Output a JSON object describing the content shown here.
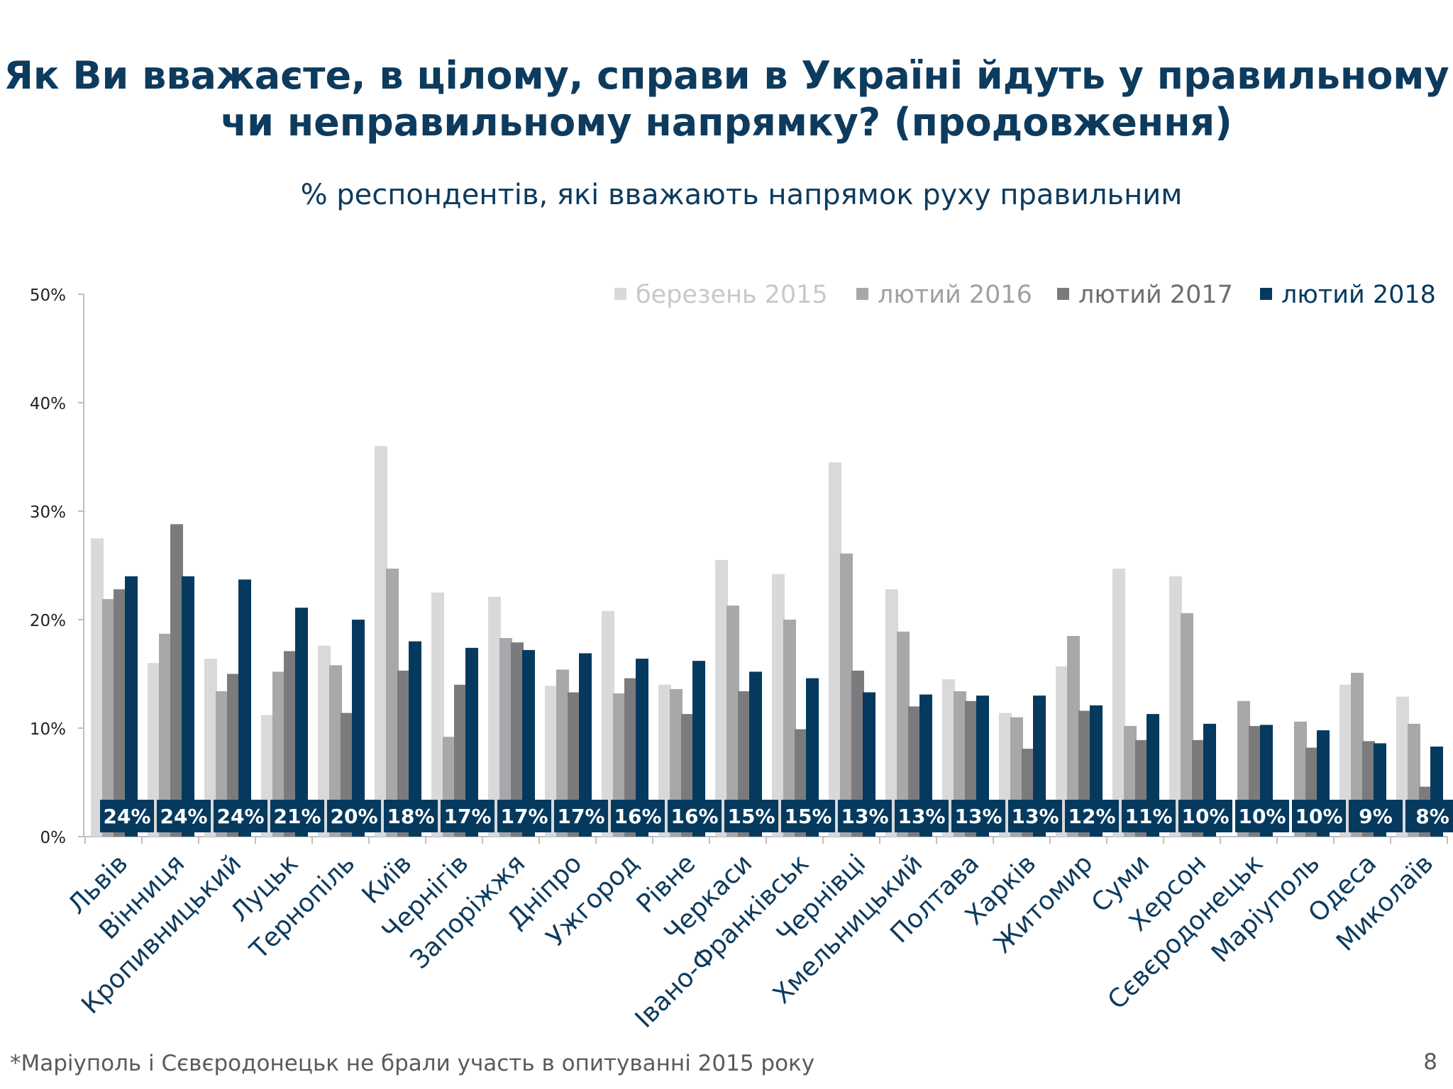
{
  "slide": {
    "title_line1": "Як Ви вважаєте, в цілому, справи в Україні йдуть у правильному",
    "title_line2": "чи неправильному напрямку? (продовження)",
    "footnote": "*Маріуполь і Сєвєродонецьк не брали участь в опитуванні 2015 року",
    "page_number": "8"
  },
  "chart_data": {
    "type": "bar",
    "title": "% респондентів, які вважають напрямок руху правильним",
    "xlabel": "",
    "ylabel": "",
    "ylim": [
      0,
      50
    ],
    "yticks": [
      0,
      10,
      20,
      30,
      40,
      50
    ],
    "ytick_labels": [
      "0%",
      "10%",
      "20%",
      "30%",
      "40%",
      "50%"
    ],
    "legend_position": "top-right",
    "categories": [
      "Львів",
      "Вінниця",
      "Кропивницький",
      "Луцьк",
      "Тернопіль",
      "Київ",
      "Чернігів",
      "Запоріжжя",
      "Дніпро",
      "Ужгород",
      "Рівне",
      "Черкаси",
      "Івано-Франківськ",
      "Чернівці",
      "Хмельницький",
      "Полтава",
      "Харків",
      "Житомир",
      "Суми",
      "Херсон",
      "Сєвєродонецьк",
      "Маріуполь",
      "Одеса",
      "Миколаїв"
    ],
    "series": [
      {
        "name": "березень 2015",
        "color": "#d9d9db",
        "values": [
          27.5,
          16,
          16.4,
          11.2,
          17.6,
          36,
          22.5,
          22.1,
          13.9,
          20.8,
          14,
          25.5,
          24.2,
          34.5,
          22.8,
          14.5,
          11.4,
          15.7,
          24.7,
          24,
          null,
          null,
          14,
          12.9
        ]
      },
      {
        "name": "лютий 2016",
        "color": "#a8a8ab",
        "values": [
          21.9,
          18.7,
          13.4,
          15.2,
          15.8,
          24.7,
          9.2,
          18.3,
          15.4,
          13.2,
          13.6,
          21.3,
          20,
          26.1,
          18.9,
          13.4,
          11,
          18.5,
          10.2,
          20.6,
          12.5,
          10.6,
          15.1,
          10.4
        ]
      },
      {
        "name": "лютий 2017",
        "color": "#7b7b7e",
        "values": [
          22.8,
          28.8,
          15,
          17.1,
          11.4,
          15.3,
          14,
          17.9,
          13.3,
          14.6,
          11.3,
          13.4,
          9.9,
          15.3,
          12,
          12.5,
          8.1,
          11.6,
          8.9,
          8.9,
          10.2,
          8.2,
          8.8,
          4.6
        ]
      },
      {
        "name": "лютий 2018",
        "color": "#053a5e",
        "values": [
          24,
          24,
          23.7,
          21.1,
          20,
          18,
          17.4,
          17.2,
          16.9,
          16.4,
          16.2,
          15.2,
          14.6,
          13.3,
          13.1,
          13,
          13,
          12.1,
          11.3,
          10.4,
          10.3,
          9.8,
          8.6,
          8.3
        ]
      }
    ],
    "value_labels": [
      "24%",
      "24%",
      "24%",
      "21%",
      "20%",
      "18%",
      "17%",
      "17%",
      "17%",
      "16%",
      "16%",
      "15%",
      "15%",
      "13%",
      "13%",
      "13%",
      "13%",
      "12%",
      "11%",
      "10%",
      "10%",
      "10%",
      "9%",
      "8%"
    ],
    "legend_colors": [
      "#d9d9db",
      "#a8a8ab",
      "#7b7b7e",
      "#053a5e"
    ],
    "legend_text_colors": [
      "#c8c8ca",
      "#a0a0a3",
      "#6e6e71",
      "#053a5e"
    ],
    "label_box_color": "#053a5e"
  }
}
